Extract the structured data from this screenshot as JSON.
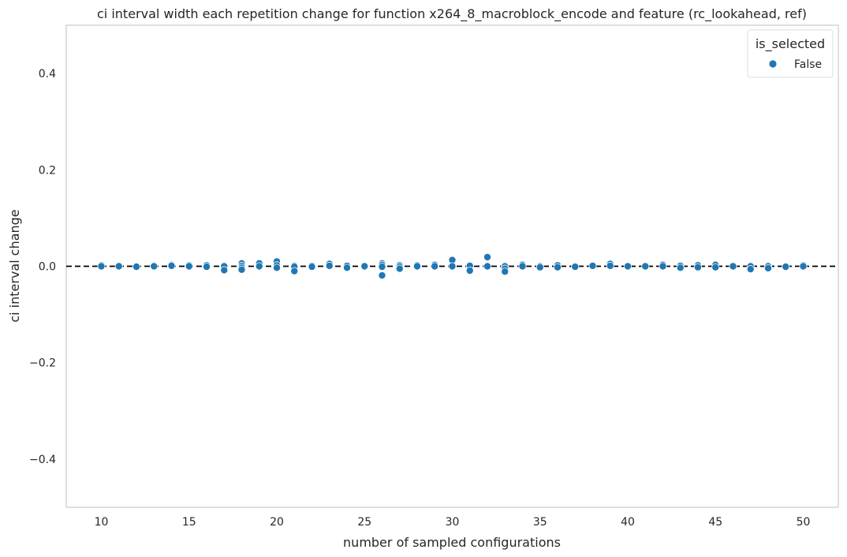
{
  "chart_data": {
    "type": "scatter",
    "title": "ci interval width each repetition change for function x264_8_macroblock_encode and feature (rc_lookahead, ref)",
    "xlabel": "number of sampled configurations",
    "ylabel": "ci interval change",
    "xlim": [
      8,
      52
    ],
    "ylim": [
      -0.5,
      0.5
    ],
    "xticks": [
      10,
      15,
      20,
      25,
      30,
      35,
      40,
      45,
      50
    ],
    "yticks": [
      -0.4,
      -0.2,
      0.0,
      0.2,
      0.4
    ],
    "ytick_labels": [
      "−0.4",
      "−0.2",
      "0.0",
      "0.2",
      "0.4"
    ],
    "xtick_labels": [
      "10",
      "15",
      "20",
      "25",
      "30",
      "35",
      "40",
      "45",
      "50"
    ],
    "grid": false,
    "reference_line": {
      "y": 0,
      "style": "dashed",
      "color": "#000000"
    },
    "legend": {
      "title": "is_selected",
      "placement": "top-right",
      "entries": [
        "False"
      ]
    },
    "series": [
      {
        "name": "False",
        "color": "#1f77b4",
        "points": [
          [
            10,
            0.002
          ],
          [
            10,
            0.0
          ],
          [
            11,
            0.001
          ],
          [
            11,
            0.0
          ],
          [
            12,
            0.0
          ],
          [
            12,
            -0.001
          ],
          [
            13,
            0.0
          ],
          [
            14,
            0.003
          ],
          [
            14,
            0.001
          ],
          [
            15,
            0.002
          ],
          [
            15,
            0.0
          ],
          [
            16,
            0.002
          ],
          [
            16,
            -0.001
          ],
          [
            17,
            0.0
          ],
          [
            17,
            -0.008
          ],
          [
            18,
            0.006
          ],
          [
            18,
            0.001
          ],
          [
            18,
            -0.003
          ],
          [
            18,
            -0.007
          ],
          [
            19,
            0.007
          ],
          [
            19,
            0.006
          ],
          [
            19,
            0.0
          ],
          [
            20,
            0.01
          ],
          [
            20,
            0.002
          ],
          [
            20,
            -0.003
          ],
          [
            21,
            0.001
          ],
          [
            21,
            -0.001
          ],
          [
            21,
            -0.01
          ],
          [
            22,
            0.001
          ],
          [
            22,
            -0.001
          ],
          [
            23,
            0.005
          ],
          [
            23,
            0.001
          ],
          [
            24,
            0.001
          ],
          [
            24,
            -0.003
          ],
          [
            25,
            0.0
          ],
          [
            26,
            0.006
          ],
          [
            26,
            0.003
          ],
          [
            26,
            -0.001
          ],
          [
            26,
            -0.019
          ],
          [
            27,
            0.002
          ],
          [
            27,
            -0.001
          ],
          [
            27,
            -0.005
          ],
          [
            28,
            0.002
          ],
          [
            28,
            0.0
          ],
          [
            29,
            0.003
          ],
          [
            29,
            0.0
          ],
          [
            30,
            0.013
          ],
          [
            30,
            0.0
          ],
          [
            31,
            0.001
          ],
          [
            31,
            -0.009
          ],
          [
            32,
            0.019
          ],
          [
            32,
            0.0
          ],
          [
            33,
            0.0
          ],
          [
            33,
            -0.005
          ],
          [
            33,
            -0.011
          ],
          [
            34,
            0.003
          ],
          [
            34,
            0.0
          ],
          [
            35,
            0.0
          ],
          [
            35,
            -0.002
          ],
          [
            36,
            0.002
          ],
          [
            36,
            -0.002
          ],
          [
            37,
            0.0
          ],
          [
            37,
            -0.001
          ],
          [
            38,
            0.001
          ],
          [
            39,
            0.005
          ],
          [
            39,
            0.001
          ],
          [
            40,
            0.0
          ],
          [
            41,
            0.0
          ],
          [
            42,
            0.003
          ],
          [
            42,
            0.0
          ],
          [
            43,
            0.001
          ],
          [
            43,
            -0.003
          ],
          [
            44,
            0.002
          ],
          [
            44,
            -0.002
          ],
          [
            45,
            0.003
          ],
          [
            45,
            -0.002
          ],
          [
            46,
            0.001
          ],
          [
            46,
            0.0
          ],
          [
            47,
            0.0
          ],
          [
            47,
            -0.006
          ],
          [
            48,
            0.0
          ],
          [
            48,
            -0.004
          ],
          [
            49,
            0.0
          ],
          [
            49,
            -0.001
          ],
          [
            50,
            0.002
          ],
          [
            50,
            0.0
          ]
        ]
      }
    ]
  }
}
